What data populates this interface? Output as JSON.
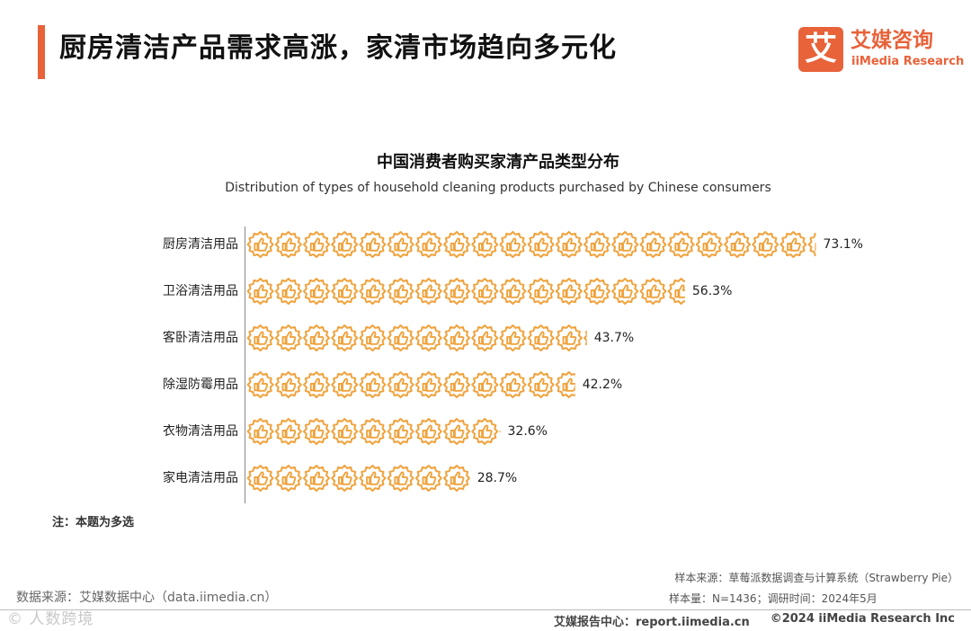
{
  "header": {
    "title": "厨房清洁产品需求高涨，家清市场趋向多元化",
    "logo_mark": "艾",
    "logo_cn": "艾媒咨询",
    "logo_en": "iiMedia Research"
  },
  "chart_data": {
    "type": "bar",
    "title": "中国消费者购买家清产品类型分布",
    "subtitle": "Distribution of types of household cleaning products purchased by Chinese consumers",
    "categories": [
      "厨房清洁用品",
      "卫浴清洁用品",
      "客卧清洁用品",
      "除湿防霉用品",
      "衣物清洁用品",
      "家电清洁用品"
    ],
    "values": [
      73.1,
      56.3,
      43.7,
      42.2,
      32.6,
      28.7
    ],
    "value_labels": [
      "73.1%",
      "56.3%",
      "43.7%",
      "42.2%",
      "32.6%",
      "28.7%"
    ],
    "unit": "%",
    "mark": "thumbs-up-badge-icon",
    "bar_color": "#f0a23c",
    "grid": false
  },
  "note": "注：本题为多选",
  "source_left": "数据来源：艾媒数据中心（data.iimedia.cn）",
  "watermark": "© 人数跨境",
  "sample_source": "样本来源：草莓派数据调查与计算系统（Strawberry Pie）",
  "sample_size": "样本量：N=1436；调研时间：2024年5月",
  "footer": {
    "report": "艾媒报告中心：report.iimedia.cn",
    "copyright": "©2024  iiMedia Research  Inc"
  },
  "colors": {
    "accent": "#e8623a",
    "icon": "#f0a23c"
  }
}
